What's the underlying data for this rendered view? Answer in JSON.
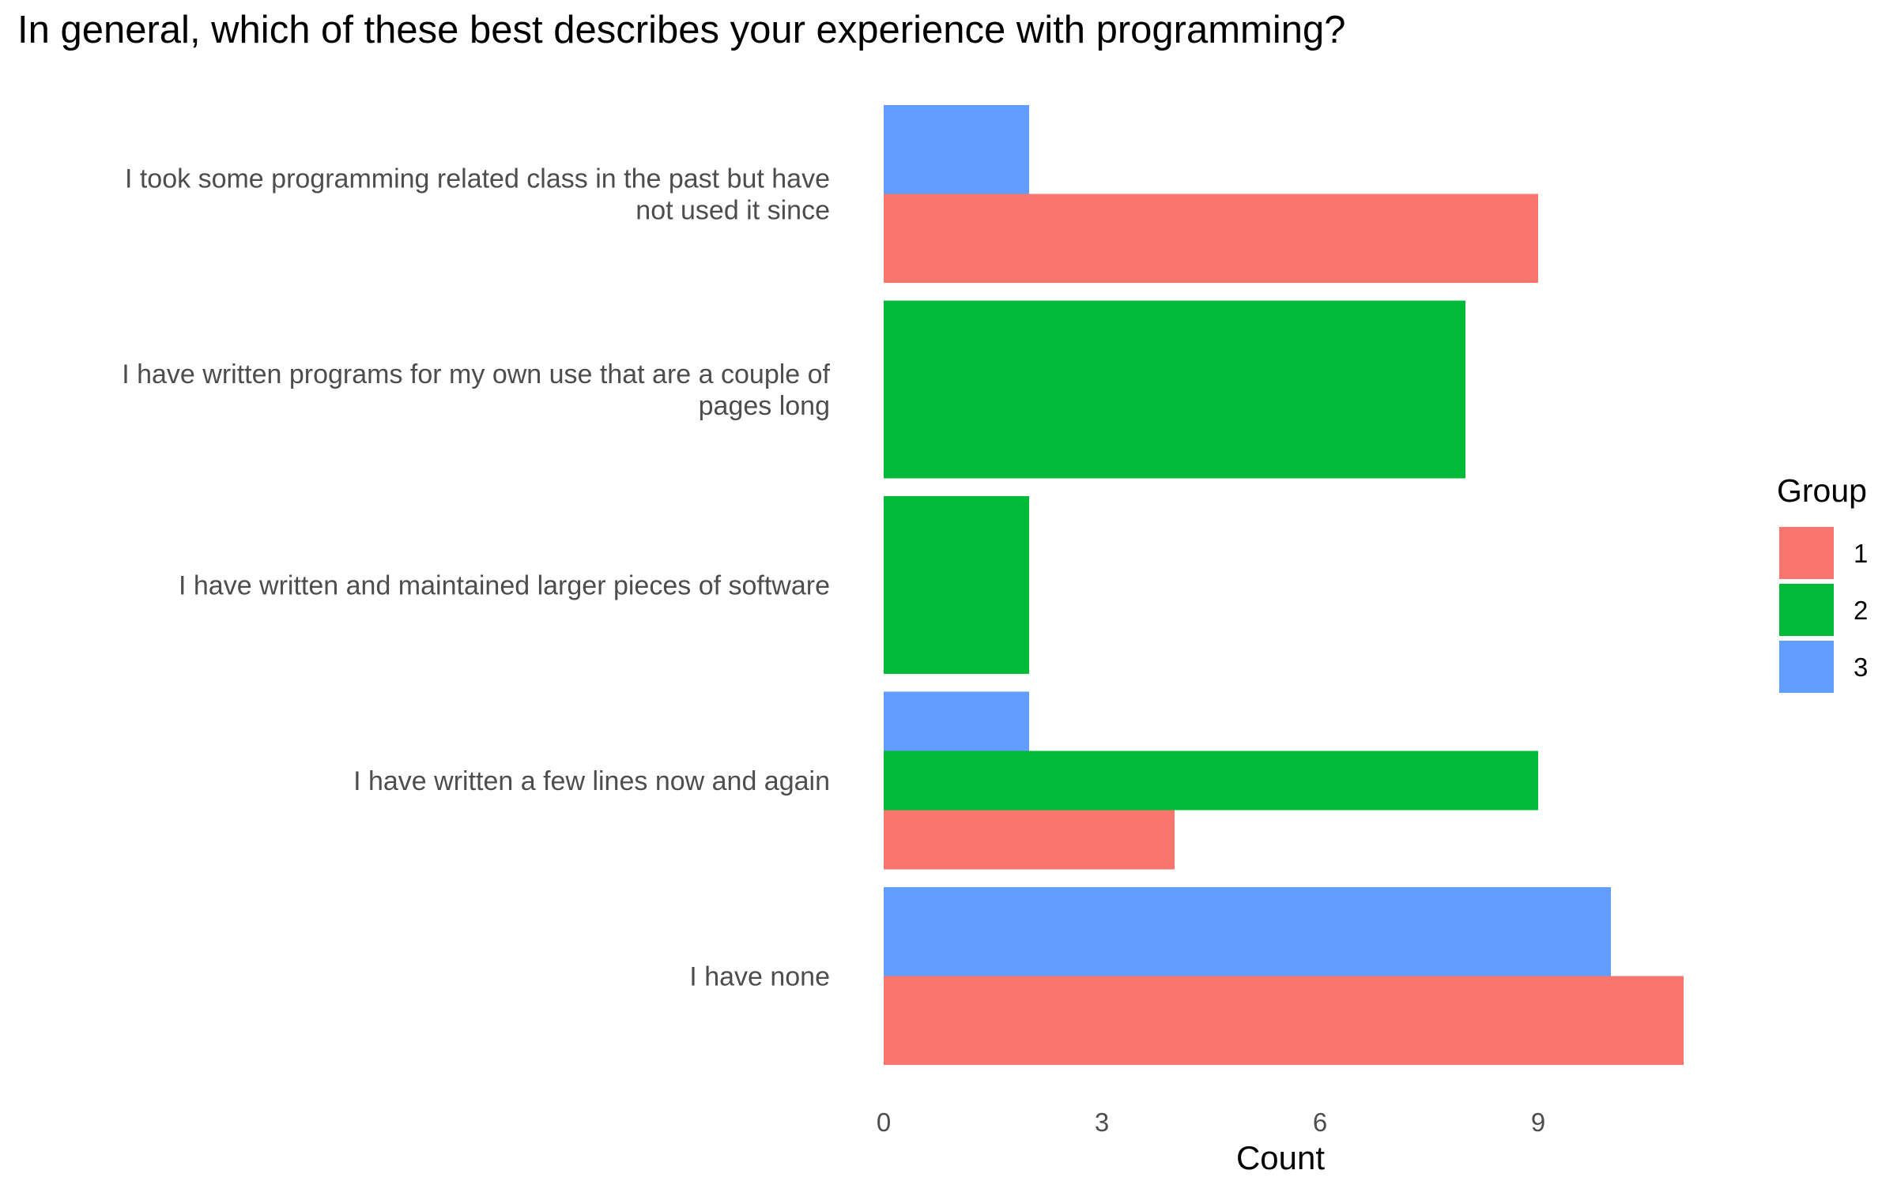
{
  "chart_data": {
    "type": "bar",
    "orientation": "horizontal",
    "title": "In general, which of these best describes your experience with programming?",
    "xlabel": "Count",
    "ylabel": "",
    "xlim": [
      0,
      11
    ],
    "x_ticks": [
      0,
      3,
      6,
      9
    ],
    "grid": false,
    "categories": [
      [
        "I took some programming related class in the past but have",
        "not used it since"
      ],
      [
        "I have written programs for my own use that are a couple of",
        "pages long"
      ],
      [
        "I have written and maintained larger pieces of software"
      ],
      [
        "I have written a few lines now and again"
      ],
      [
        "I have none"
      ]
    ],
    "bars": [
      {
        "category": 0,
        "group": "1",
        "value": 9
      },
      {
        "category": 0,
        "group": "3",
        "value": 2
      },
      {
        "category": 1,
        "group": "2",
        "value": 8
      },
      {
        "category": 2,
        "group": "2",
        "value": 2
      },
      {
        "category": 3,
        "group": "1",
        "value": 4
      },
      {
        "category": 3,
        "group": "2",
        "value": 9
      },
      {
        "category": 3,
        "group": "3",
        "value": 2
      },
      {
        "category": 4,
        "group": "1",
        "value": 11
      },
      {
        "category": 4,
        "group": "3",
        "value": 10
      }
    ],
    "legend": {
      "title": "Group",
      "position": "right",
      "items": [
        {
          "label": "1",
          "color": "#F8766D"
        },
        {
          "label": "2",
          "color": "#00BA38"
        },
        {
          "label": "3",
          "color": "#619CFF"
        }
      ]
    }
  }
}
